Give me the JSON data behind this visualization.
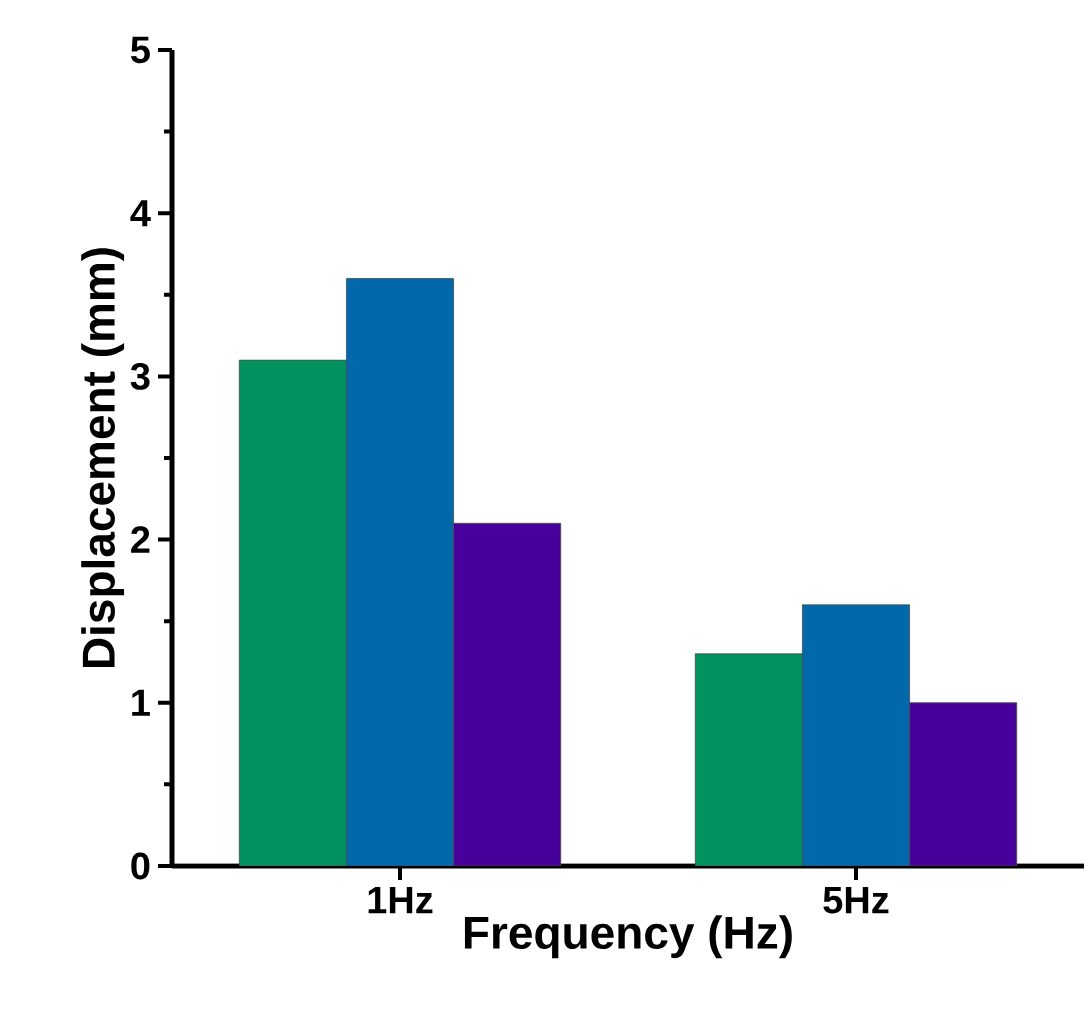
{
  "chart_data": {
    "type": "bar",
    "xlabel": "Frequency (Hz)",
    "ylabel": "Displacement (mm)",
    "categories": [
      "1Hz",
      "5Hz"
    ],
    "series": [
      {
        "color": "#02925f",
        "values": [
          3.1,
          1.3
        ]
      },
      {
        "color": "#0169ab",
        "values": [
          3.6,
          1.6
        ]
      },
      {
        "color": "#48009a",
        "values": [
          2.1,
          1.0
        ]
      }
    ],
    "ylim": [
      0,
      5
    ],
    "yticks": [
      0,
      1,
      2,
      3,
      4,
      5
    ],
    "grid": false
  }
}
